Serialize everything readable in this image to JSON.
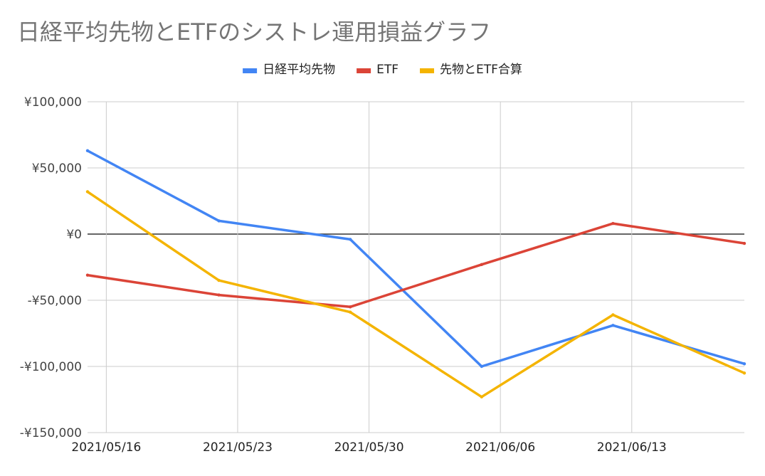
{
  "chart_data": {
    "type": "line",
    "title": "日経平均先物とETFのシストレ運用損益グラフ",
    "xlabel": "",
    "ylabel": "",
    "x_tick_labels": [
      "2021/05/16",
      "2021/05/23",
      "2021/05/30",
      "2021/06/06",
      "2021/06/13"
    ],
    "x": [
      "2021/05/15",
      "2021/05/22",
      "2021/05/29",
      "2021/06/05",
      "2021/06/12",
      "2021/06/19"
    ],
    "ylim": [
      -150000,
      100000
    ],
    "y_ticks": [
      100000,
      50000,
      0,
      -50000,
      -100000,
      -150000
    ],
    "y_tick_labels": [
      "¥100,000",
      "¥50,000",
      "¥0",
      "-¥50,000",
      "-¥100,000",
      "-¥150,000"
    ],
    "grid": true,
    "legend_position": "top",
    "series": [
      {
        "name": "日経平均先物",
        "color": "#4285f4",
        "values": [
          63000,
          10000,
          -4000,
          -100000,
          -69000,
          -98000
        ]
      },
      {
        "name": "ETF",
        "color": "#db4437",
        "values": [
          -31000,
          -46000,
          -55000,
          -23000,
          8000,
          -7000
        ]
      },
      {
        "name": "先物とETF合算",
        "color": "#f4b400",
        "values": [
          32000,
          -35000,
          -59000,
          -123000,
          -61000,
          -105000
        ]
      }
    ]
  }
}
